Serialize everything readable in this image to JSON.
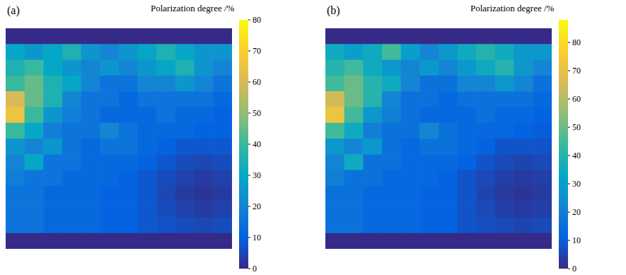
{
  "chart_data": [
    {
      "type": "heatmap",
      "title": "(a)",
      "colorbar_label": "Polarization degree /%",
      "tick_labels": false,
      "colorbar_range": [
        0,
        80
      ],
      "colorbar_ticks": [
        0,
        10,
        20,
        30,
        40,
        50,
        60,
        70,
        80
      ],
      "cells": [
        [
          0,
          0,
          0,
          0,
          0,
          0,
          0,
          0,
          0,
          0,
          0,
          0
        ],
        [
          30,
          25,
          30,
          35,
          25,
          20,
          25,
          30,
          35,
          30,
          25,
          25
        ],
        [
          35,
          40,
          30,
          25,
          20,
          25,
          20,
          25,
          30,
          35,
          25,
          20
        ],
        [
          40,
          45,
          35,
          30,
          20,
          15,
          15,
          20,
          20,
          25,
          20,
          15
        ],
        [
          60,
          45,
          35,
          20,
          15,
          15,
          12,
          15,
          15,
          15,
          15,
          12
        ],
        [
          65,
          40,
          25,
          18,
          15,
          12,
          12,
          12,
          15,
          12,
          12,
          10
        ],
        [
          40,
          30,
          18,
          15,
          15,
          20,
          15,
          12,
          12,
          12,
          10,
          10
        ],
        [
          25,
          20,
          25,
          15,
          12,
          15,
          15,
          12,
          10,
          8,
          8,
          8
        ],
        [
          20,
          30,
          15,
          15,
          12,
          12,
          12,
          10,
          8,
          6,
          5,
          6
        ],
        [
          18,
          15,
          15,
          12,
          12,
          12,
          10,
          8,
          6,
          4,
          3,
          4
        ],
        [
          15,
          15,
          12,
          12,
          12,
          10,
          10,
          8,
          5,
          3,
          2,
          3
        ],
        [
          15,
          15,
          12,
          12,
          12,
          10,
          10,
          8,
          6,
          4,
          3,
          4
        ],
        [
          15,
          15,
          12,
          12,
          12,
          10,
          10,
          8,
          7,
          6,
          5,
          6
        ],
        [
          0,
          0,
          0,
          0,
          0,
          0,
          0,
          0,
          0,
          0,
          0,
          0
        ]
      ]
    },
    {
      "type": "heatmap",
      "title": "(b)",
      "colorbar_label": "Polarization degree /%",
      "tick_labels": false,
      "colorbar_range": [
        0,
        88
      ],
      "colorbar_ticks": [
        0,
        10,
        20,
        30,
        40,
        50,
        60,
        70,
        80
      ],
      "cells": [
        [
          0,
          0,
          0,
          0,
          0,
          0,
          0,
          0,
          0,
          0,
          0,
          0
        ],
        [
          35,
          30,
          35,
          45,
          30,
          22,
          28,
          35,
          40,
          35,
          28,
          28
        ],
        [
          40,
          45,
          35,
          28,
          22,
          28,
          22,
          28,
          35,
          40,
          28,
          22
        ],
        [
          45,
          50,
          40,
          35,
          22,
          16,
          16,
          22,
          22,
          28,
          22,
          16
        ],
        [
          65,
          50,
          40,
          22,
          16,
          16,
          13,
          16,
          16,
          16,
          16,
          13
        ],
        [
          72,
          45,
          28,
          20,
          16,
          13,
          13,
          13,
          16,
          13,
          13,
          11
        ],
        [
          45,
          35,
          20,
          16,
          16,
          22,
          16,
          13,
          13,
          13,
          11,
          10
        ],
        [
          28,
          22,
          28,
          16,
          13,
          16,
          16,
          13,
          11,
          8,
          8,
          8
        ],
        [
          22,
          35,
          16,
          16,
          13,
          13,
          13,
          11,
          8,
          6,
          5,
          6
        ],
        [
          20,
          16,
          16,
          13,
          13,
          13,
          11,
          8,
          6,
          4,
          3,
          4
        ],
        [
          16,
          16,
          13,
          13,
          13,
          11,
          11,
          8,
          5,
          3,
          2,
          3
        ],
        [
          16,
          16,
          13,
          13,
          13,
          11,
          11,
          8,
          6,
          4,
          3,
          4
        ],
        [
          16,
          16,
          13,
          13,
          13,
          11,
          11,
          8,
          7,
          6,
          5,
          6
        ],
        [
          0,
          0,
          0,
          0,
          0,
          0,
          0,
          0,
          0,
          0,
          0,
          0
        ]
      ]
    }
  ]
}
